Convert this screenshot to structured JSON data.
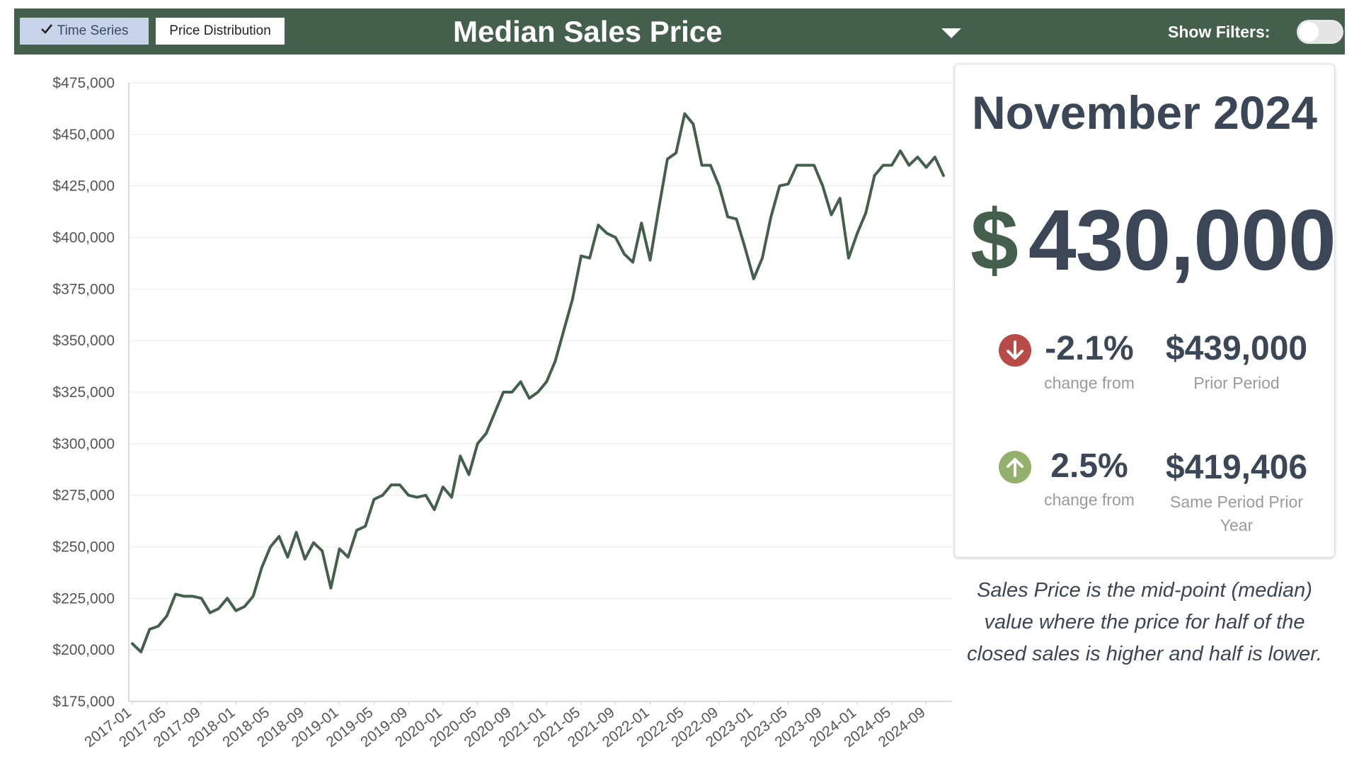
{
  "toolbar": {
    "tab_time_series": "Time Series",
    "tab_price_distribution": "Price Distribution",
    "title": "Median Sales Price",
    "show_filters_label": "Show Filters:",
    "show_filters_on": false
  },
  "summary": {
    "period": "November 2024",
    "currency_symbol": "$",
    "value": "430,000",
    "change_prior": {
      "direction": "down",
      "percent": "-2.1%",
      "label": "change from",
      "compare_value": "$439,000",
      "compare_label": "Prior Period"
    },
    "change_year": {
      "direction": "up",
      "percent": "2.5%",
      "label": "change from",
      "compare_value": "$419,406",
      "compare_label": "Same Period Prior Year"
    },
    "note": "Sales Price is the mid-point (median) value where the price for half of the closed sales is higher and half is lower."
  },
  "colors": {
    "header": "#445f4b",
    "line": "#445f4b",
    "down": "#b84a48",
    "up": "#93b06c",
    "text": "#3b4656"
  },
  "chart_data": {
    "type": "line",
    "title": "",
    "xlabel": "",
    "ylabel": "",
    "ylim": [
      175000,
      475000
    ],
    "yticks": [
      175000,
      200000,
      225000,
      250000,
      275000,
      300000,
      325000,
      350000,
      375000,
      400000,
      425000,
      450000,
      475000
    ],
    "ytick_labels": [
      "$175,000",
      "$200,000",
      "$225,000",
      "$250,000",
      "$275,000",
      "$300,000",
      "$325,000",
      "$350,000",
      "$375,000",
      "$400,000",
      "$425,000",
      "$450,000",
      "$475,000"
    ],
    "xtick_labels": [
      "2017-01",
      "2017-05",
      "2017-09",
      "2018-01",
      "2018-05",
      "2018-09",
      "2019-01",
      "2019-05",
      "2019-09",
      "2020-01",
      "2020-05",
      "2020-09",
      "2021-01",
      "2021-05",
      "2021-09",
      "2022-01",
      "2022-05",
      "2022-09",
      "2023-01",
      "2023-05",
      "2023-09",
      "2024-01",
      "2024-05",
      "2024-09"
    ],
    "grid": true,
    "series": [
      {
        "x": [
          "2017-01",
          "2017-02",
          "2017-03",
          "2017-04",
          "2017-05",
          "2017-06",
          "2017-07",
          "2017-08",
          "2017-09",
          "2017-10",
          "2017-11",
          "2017-12",
          "2018-01",
          "2018-02",
          "2018-03",
          "2018-04",
          "2018-05",
          "2018-06",
          "2018-07",
          "2018-08",
          "2018-09",
          "2018-10",
          "2018-11",
          "2018-12",
          "2019-01",
          "2019-02",
          "2019-03",
          "2019-04",
          "2019-05",
          "2019-06",
          "2019-07",
          "2019-08",
          "2019-09",
          "2019-10",
          "2019-11",
          "2019-12",
          "2020-01",
          "2020-02",
          "2020-03",
          "2020-04",
          "2020-05",
          "2020-06",
          "2020-07",
          "2020-08",
          "2020-09",
          "2020-10",
          "2020-11",
          "2020-12",
          "2021-01",
          "2021-02",
          "2021-03",
          "2021-04",
          "2021-05",
          "2021-06",
          "2021-07",
          "2021-08",
          "2021-09",
          "2021-10",
          "2021-11",
          "2021-12",
          "2022-01",
          "2022-02",
          "2022-03",
          "2022-04",
          "2022-05",
          "2022-06",
          "2022-07",
          "2022-08",
          "2022-09",
          "2022-10",
          "2022-11",
          "2022-12",
          "2023-01",
          "2023-02",
          "2023-03",
          "2023-04",
          "2023-05",
          "2023-06",
          "2023-07",
          "2023-08",
          "2023-09",
          "2023-10",
          "2023-11",
          "2023-12",
          "2024-01",
          "2024-02",
          "2024-03",
          "2024-04",
          "2024-05",
          "2024-06",
          "2024-07",
          "2024-08",
          "2024-09",
          "2024-10",
          "2024-11"
        ],
        "values": [
          203000,
          199000,
          210000,
          211500,
          216500,
          227000,
          226000,
          226000,
          225000,
          218000,
          220000,
          225000,
          219000,
          221000,
          226000,
          240000,
          250000,
          255000,
          245000,
          257000,
          244000,
          252000,
          248000,
          230000,
          249000,
          245000,
          258000,
          260000,
          273000,
          275000,
          280000,
          280000,
          275000,
          274000,
          275000,
          268000,
          279000,
          274000,
          294000,
          285000,
          300000,
          305000,
          315000,
          325000,
          325000,
          330000,
          322000,
          325000,
          330000,
          340000,
          355000,
          370000,
          391000,
          390000,
          406000,
          402000,
          400000,
          392000,
          388000,
          407000,
          389000,
          414000,
          438000,
          441000,
          460000,
          455000,
          435000,
          435000,
          425000,
          410000,
          409000,
          395000,
          380000,
          390000,
          410000,
          425000,
          426000,
          435000,
          435000,
          435000,
          425000,
          411000,
          419000,
          390000,
          402000,
          412000,
          430000,
          435000,
          435000,
          442000,
          435000,
          439000,
          434000,
          439000,
          430000
        ]
      }
    ]
  }
}
